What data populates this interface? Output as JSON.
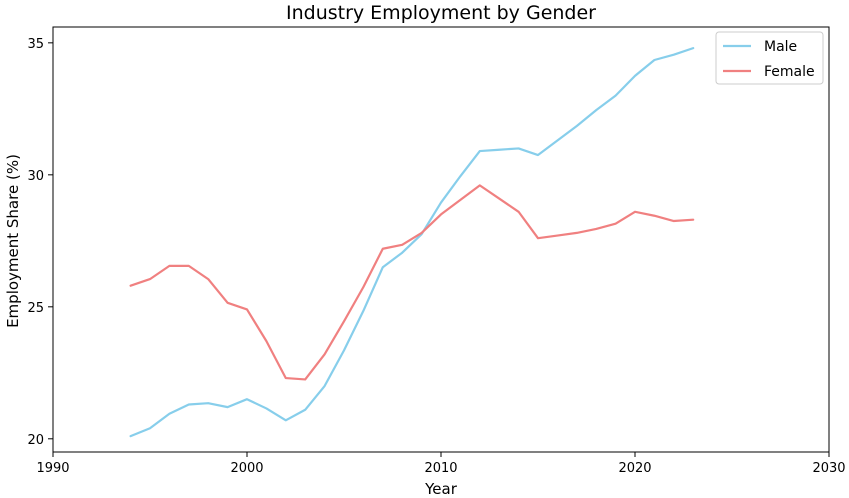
{
  "chart_data": {
    "type": "line",
    "title": "Industry Employment by Gender",
    "xlabel": "Year",
    "ylabel": "Employment Share (%)",
    "xlim": [
      1990,
      2030
    ],
    "ylim": [
      19.5,
      35.6
    ],
    "xticks": [
      1990,
      2000,
      2010,
      2020,
      2030
    ],
    "yticks": [
      20,
      25,
      30,
      35
    ],
    "grid": false,
    "legend_position": "top-right",
    "x": [
      1994,
      1995,
      1996,
      1997,
      1998,
      1999,
      2000,
      2001,
      2002,
      2003,
      2004,
      2005,
      2006,
      2007,
      2008,
      2009,
      2010,
      2011,
      2012,
      2013,
      2014,
      2015,
      2016,
      2017,
      2018,
      2019,
      2020,
      2021,
      2022,
      2023
    ],
    "series": [
      {
        "name": "Male",
        "color": "#87ceeb",
        "values": [
          20.1,
          20.4,
          20.95,
          21.3,
          21.35,
          21.2,
          21.5,
          21.15,
          20.7,
          21.1,
          22.0,
          23.35,
          24.85,
          26.5,
          27.05,
          27.75,
          28.95,
          29.95,
          30.9,
          30.95,
          31.0,
          30.75,
          31.3,
          31.85,
          32.45,
          33.0,
          33.75,
          34.35,
          34.55,
          34.8
        ]
      },
      {
        "name": "Female",
        "color": "#f08080",
        "values": [
          25.8,
          26.05,
          26.55,
          26.55,
          26.05,
          25.15,
          24.9,
          23.7,
          22.3,
          22.25,
          23.2,
          24.45,
          25.75,
          27.2,
          27.35,
          27.8,
          28.5,
          29.05,
          29.6,
          29.1,
          28.6,
          27.6,
          27.7,
          27.8,
          27.95,
          28.15,
          28.6,
          28.45,
          28.25,
          28.3
        ]
      }
    ]
  }
}
